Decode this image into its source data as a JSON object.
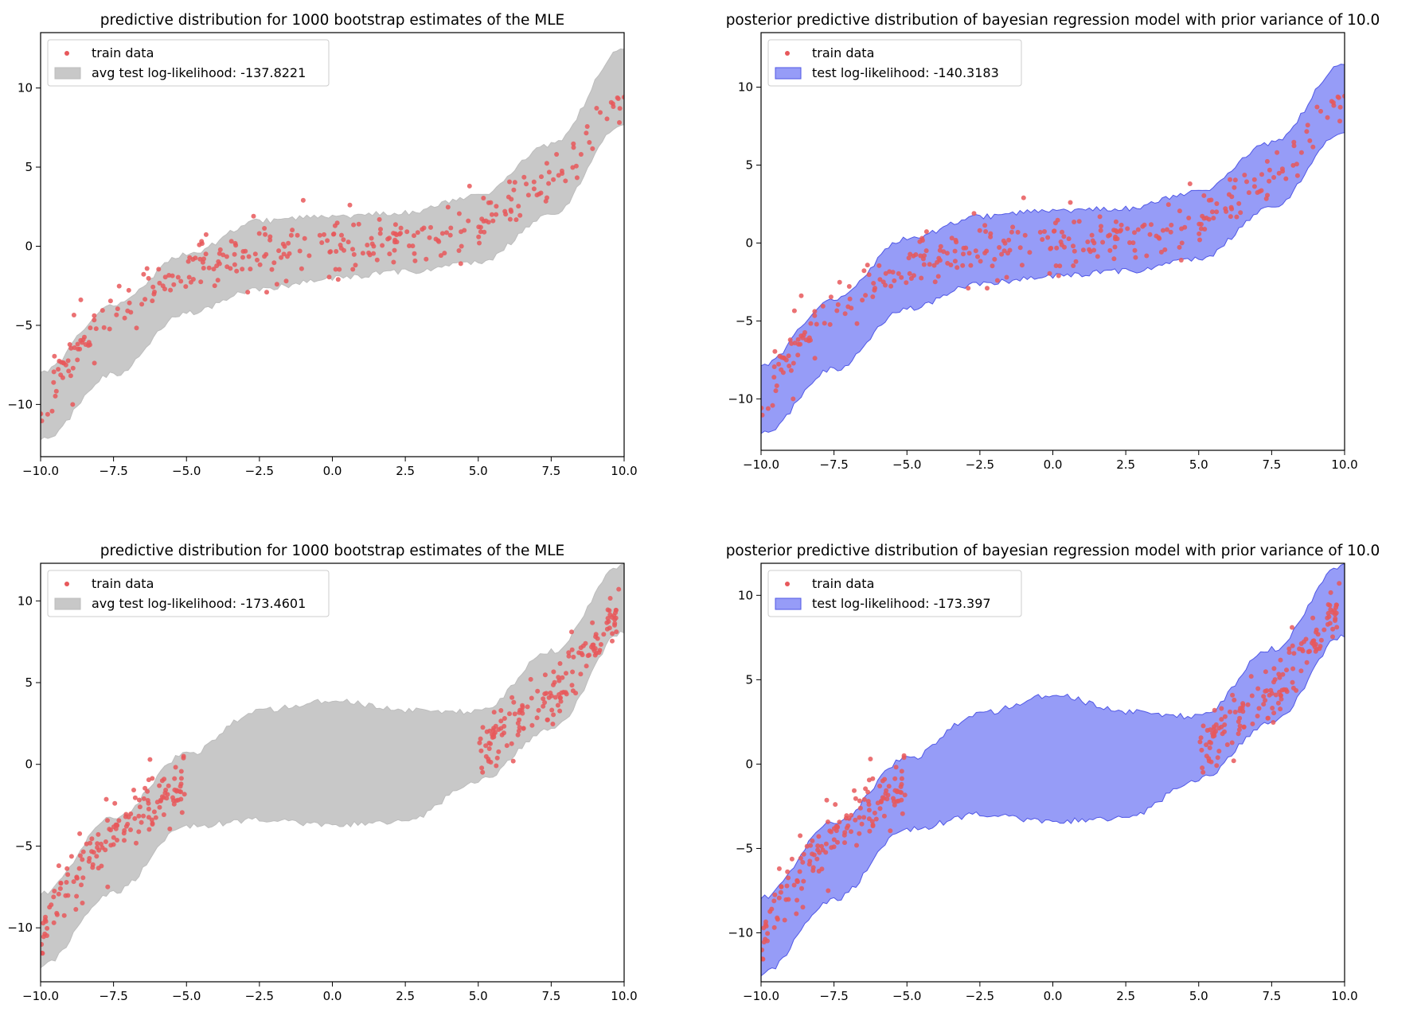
{
  "chart_data": [
    {
      "type": "scatter",
      "title": "predictive distribution for 1000 bootstrap estimates of the MLE",
      "xlabel": "",
      "ylabel": "",
      "xlim": [
        -10,
        10
      ],
      "ylim": [
        -13.3,
        13.5
      ],
      "xticks": [
        "−10.0",
        "−7.5",
        "−5.0",
        "−2.5",
        "0.0",
        "2.5",
        "5.0",
        "7.5",
        "10.0"
      ],
      "yticks": [
        {
          "value": 10,
          "label": "10"
        },
        {
          "value": 5,
          "label": "5"
        },
        {
          "value": 0,
          "label": "0"
        },
        {
          "value": -5,
          "label": "−5"
        },
        {
          "value": -10,
          "label": "−10"
        }
      ],
      "legend": {
        "position": "upper-left",
        "entries": [
          "train data",
          "avg test log-likelihood: -137.8221"
        ]
      },
      "band": {
        "color": "#c8c8c8",
        "edge": "#bdbdbd",
        "opacity": 1.0,
        "x": [
          -10,
          -7.5,
          -5,
          -2.5,
          0,
          2.5,
          5,
          7.5,
          10
        ],
        "lower": [
          -12.2,
          -8.1,
          -4.2,
          -2.7,
          -2.0,
          -1.6,
          -1.0,
          2.0,
          7.8
        ],
        "upper": [
          -7.9,
          -3.7,
          -0.5,
          1.6,
          1.9,
          2.1,
          3.2,
          6.4,
          12.5
        ]
      },
      "scatter_color": "#e8585b",
      "seed": 11,
      "data": {
        "x_range": [
          -10,
          10
        ],
        "n": 300,
        "noise": 0.85
      },
      "outliers": [
        [
          -8.9,
          -10.0
        ],
        [
          -2.9,
          -2.9
        ],
        [
          -2.25,
          -2.9
        ],
        [
          -1.0,
          2.9
        ],
        [
          0.6,
          2.6
        ],
        [
          4.7,
          3.8
        ],
        [
          -2.7,
          1.9
        ],
        [
          4.4,
          -1.1
        ],
        [
          0.2,
          -2.1
        ],
        [
          -1.9,
          -2.4
        ]
      ]
    },
    {
      "type": "scatter",
      "title": "posterior predictive distribution of bayesian regression model with prior variance of 10.0",
      "xlabel": "",
      "ylabel": "",
      "xlim": [
        -10,
        10
      ],
      "ylim": [
        -13.3,
        13.5
      ],
      "xticks": [
        "−10.0",
        "−7.5",
        "−5.0",
        "−2.5",
        "0.0",
        "2.5",
        "5.0",
        "7.5",
        "10.0"
      ],
      "yticks": [
        {
          "value": 10,
          "label": "10"
        },
        {
          "value": 5,
          "label": "5"
        },
        {
          "value": 0,
          "label": "0"
        },
        {
          "value": -5,
          "label": "−5"
        },
        {
          "value": -10,
          "label": "−10"
        }
      ],
      "legend": {
        "position": "upper-left",
        "entries": [
          "train data",
          "test log-likelihood: -140.3183"
        ]
      },
      "band": {
        "color": "#7f86f5",
        "edge": "#5158e6",
        "opacity": 0.82,
        "x": [
          -10,
          -7.5,
          -5,
          -2.5,
          0,
          2.5,
          5,
          7.5,
          10
        ],
        "lower": [
          -12.2,
          -8.1,
          -4.2,
          -2.6,
          -2.1,
          -1.8,
          -1.0,
          2.3,
          7.2
        ],
        "upper": [
          -7.8,
          -3.6,
          0.3,
          1.7,
          2.1,
          2.2,
          3.3,
          6.4,
          11.5
        ]
      },
      "scatter_color": "#e8585b",
      "seed": 11,
      "data": {
        "x_range": [
          -10,
          10
        ],
        "n": 300,
        "noise": 0.85
      },
      "outliers": [
        [
          -8.9,
          -10.0
        ],
        [
          -2.9,
          -2.9
        ],
        [
          -2.25,
          -2.9
        ],
        [
          -1.0,
          2.9
        ],
        [
          0.6,
          2.6
        ],
        [
          4.7,
          3.8
        ],
        [
          -2.7,
          1.9
        ],
        [
          4.4,
          -1.1
        ],
        [
          0.2,
          -2.1
        ],
        [
          -1.9,
          -2.4
        ]
      ]
    },
    {
      "type": "scatter",
      "title": "predictive distribution for 1000 bootstrap estimates of the MLE",
      "xlabel": "",
      "ylabel": "",
      "xlim": [
        -10,
        10
      ],
      "ylim": [
        -13.3,
        12.3
      ],
      "xticks": [
        "−10.0",
        "−7.5",
        "−5.0",
        "−2.5",
        "0.0",
        "2.5",
        "5.0",
        "7.5",
        "10.0"
      ],
      "yticks": [
        {
          "value": 10,
          "label": "10"
        },
        {
          "value": 5,
          "label": "5"
        },
        {
          "value": 0,
          "label": "0"
        },
        {
          "value": -5,
          "label": "−5"
        },
        {
          "value": -10,
          "label": "−10"
        }
      ],
      "legend": {
        "position": "upper-left",
        "entries": [
          "train data",
          "avg test log-likelihood: -173.4601"
        ]
      },
      "band": {
        "color": "#c8c8c8",
        "edge": "#bdbdbd",
        "opacity": 1.0,
        "x": [
          -10,
          -7.5,
          -5,
          -2.5,
          0,
          2.5,
          5,
          7.5,
          10
        ],
        "lower": [
          -12.3,
          -7.8,
          -3.8,
          -3.4,
          -3.7,
          -3.5,
          -1.0,
          2.2,
          8.1
        ],
        "upper": [
          -7.9,
          -3.3,
          0.6,
          3.3,
          3.9,
          3.3,
          3.2,
          6.9,
          12.2
        ]
      },
      "scatter_color": "#e8585b",
      "seed": 29,
      "data": {
        "x_ranges": [
          [
            -10,
            -5
          ],
          [
            5,
            10
          ]
        ],
        "n": 300,
        "noise": 0.85
      },
      "outliers": [
        [
          -6.25,
          0.3
        ],
        [
          -7.7,
          -7.5
        ],
        [
          6.2,
          0.2
        ],
        [
          8.2,
          8.1
        ],
        [
          6.8,
          5.2
        ],
        [
          -5.1,
          0.5
        ]
      ]
    },
    {
      "type": "scatter",
      "title": "posterior predictive distribution of bayesian regression model with prior variance of 10.0",
      "xlabel": "",
      "ylabel": "",
      "xlim": [
        -10,
        10
      ],
      "ylim": [
        -12.9,
        11.9
      ],
      "xticks": [
        "−10.0",
        "−7.5",
        "−5.0",
        "−2.5",
        "0.0",
        "2.5",
        "5.0",
        "7.5",
        "10.0"
      ],
      "yticks": [
        {
          "value": 10,
          "label": "10"
        },
        {
          "value": 5,
          "label": "5"
        },
        {
          "value": 0,
          "label": "0"
        },
        {
          "value": -5,
          "label": "−5"
        },
        {
          "value": -10,
          "label": "−10"
        }
      ],
      "legend": {
        "position": "upper-left",
        "entries": [
          "train data",
          "test log-likelihood: -173.397"
        ]
      },
      "band": {
        "color": "#7f86f5",
        "edge": "#5158e6",
        "opacity": 0.82,
        "x": [
          -10,
          -7.5,
          -5,
          -2.5,
          0,
          2.5,
          5,
          7.5,
          10
        ],
        "lower": [
          -12.4,
          -8.0,
          -3.9,
          -3.0,
          -3.4,
          -3.2,
          -0.9,
          2.5,
          7.6
        ],
        "upper": [
          -7.9,
          -3.5,
          0.3,
          3.0,
          4.1,
          3.1,
          2.8,
          6.8,
          11.8
        ]
      },
      "scatter_color": "#e8585b",
      "seed": 29,
      "data": {
        "x_ranges": [
          [
            -10,
            -5
          ],
          [
            5,
            10
          ]
        ],
        "n": 300,
        "noise": 0.85
      },
      "outliers": [
        [
          -6.25,
          0.3
        ],
        [
          -7.7,
          -7.5
        ],
        [
          6.2,
          0.2
        ],
        [
          8.2,
          8.1
        ],
        [
          6.8,
          5.2
        ],
        [
          -5.1,
          0.5
        ]
      ]
    }
  ]
}
